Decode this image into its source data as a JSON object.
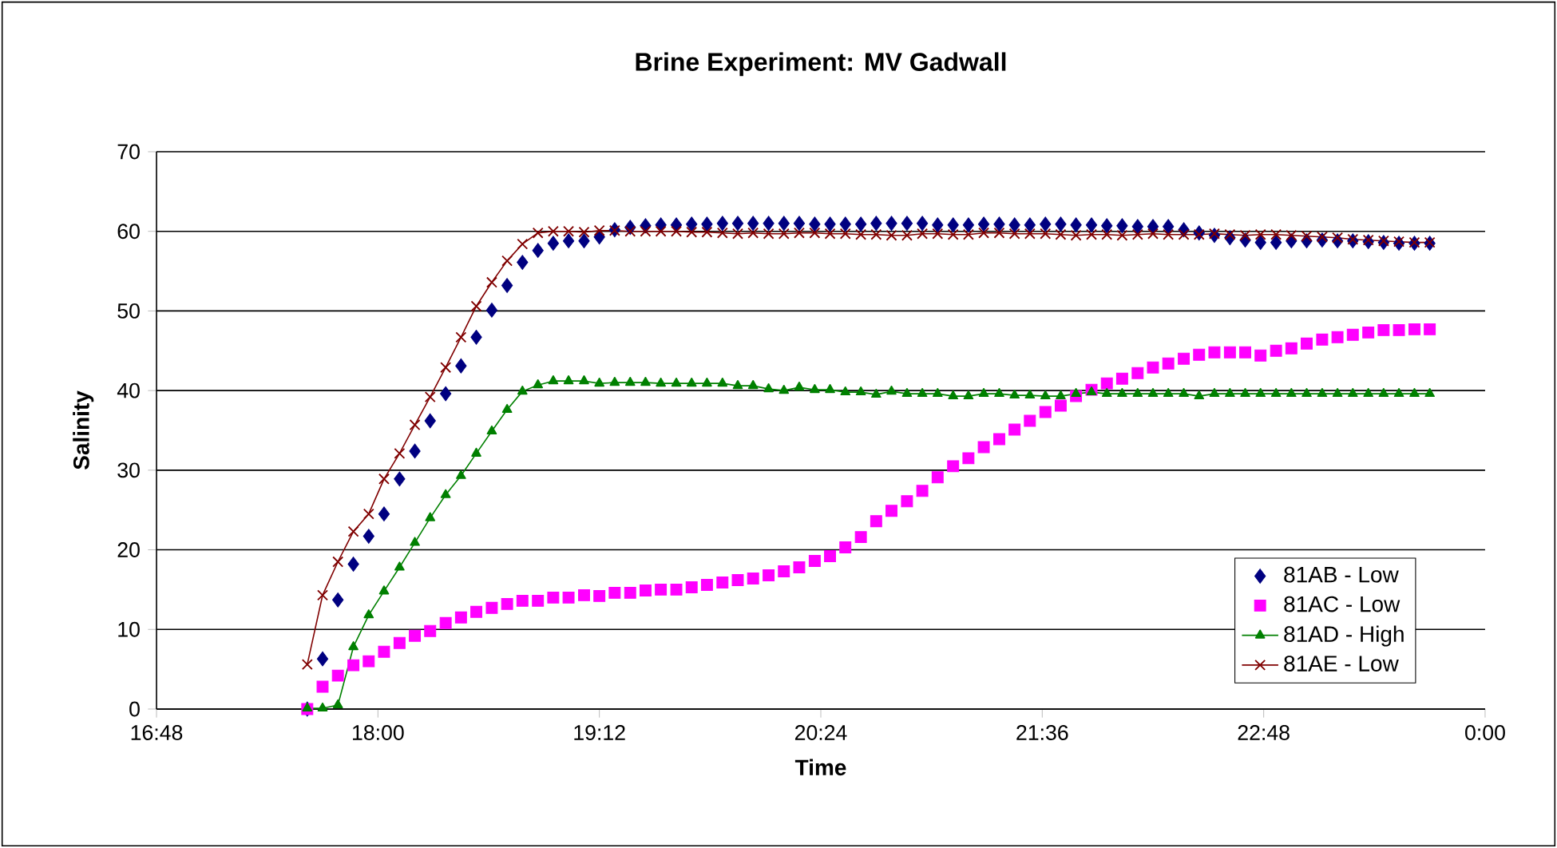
{
  "chart_data": {
    "type": "line",
    "title": "Brine Experiment: MV Gadwall",
    "xlabel": "Time",
    "ylabel": "Salinity",
    "x": [
      17.617,
      17.7,
      17.783,
      17.867,
      17.95,
      18.033,
      18.117,
      18.2,
      18.283,
      18.367,
      18.45,
      18.533,
      18.617,
      18.7,
      18.783,
      18.867,
      18.95,
      19.033,
      19.117,
      19.2,
      19.283,
      19.367,
      19.45,
      19.533,
      19.617,
      19.7,
      19.783,
      19.867,
      19.95,
      20.033,
      20.117,
      20.2,
      20.283,
      20.367,
      20.45,
      20.533,
      20.617,
      20.7,
      20.783,
      20.867,
      20.95,
      21.033,
      21.117,
      21.2,
      21.283,
      21.367,
      21.45,
      21.533,
      21.617,
      21.7,
      21.783,
      21.867,
      21.95,
      22.033,
      22.117,
      22.2,
      22.283,
      22.367,
      22.45,
      22.533,
      22.617,
      22.7,
      22.783,
      22.867,
      22.95,
      23.033,
      23.117,
      23.2,
      23.283,
      23.367,
      23.45,
      23.533,
      23.617,
      23.7
    ],
    "series": [
      {
        "name": "81AB - Low",
        "type": "scatter",
        "marker": "diamond",
        "color": "#000080",
        "values": [
          0,
          6.3,
          13.7,
          18.2,
          21.7,
          24.5,
          28.9,
          32.4,
          36.2,
          39.6,
          43.1,
          46.7,
          50.1,
          53.2,
          56.1,
          57.6,
          58.5,
          58.8,
          58.8,
          59.3,
          60.2,
          60.5,
          60.7,
          60.8,
          60.8,
          60.9,
          60.9,
          61.0,
          61.0,
          61.0,
          61.0,
          61.0,
          61.0,
          60.9,
          60.9,
          60.9,
          60.9,
          61.0,
          61.0,
          61.0,
          61.0,
          60.8,
          60.8,
          60.8,
          60.9,
          60.9,
          60.8,
          60.8,
          60.9,
          60.9,
          60.8,
          60.8,
          60.7,
          60.7,
          60.6,
          60.6,
          60.6,
          60.2,
          59.8,
          59.5,
          59.2,
          58.9,
          58.6,
          58.6,
          58.8,
          58.8,
          58.9,
          58.8,
          58.8,
          58.7,
          58.6,
          58.5,
          58.5,
          58.5
        ]
      },
      {
        "name": "81AC - Low",
        "type": "scatter",
        "marker": "square",
        "color": "#ff00ff",
        "values": [
          0,
          2.8,
          4.2,
          5.5,
          6.0,
          7.2,
          8.3,
          9.2,
          9.8,
          10.8,
          11.5,
          12.2,
          12.7,
          13.2,
          13.6,
          13.6,
          14.0,
          14.0,
          14.3,
          14.2,
          14.6,
          14.6,
          14.9,
          15.0,
          15.0,
          15.3,
          15.6,
          15.9,
          16.2,
          16.4,
          16.8,
          17.3,
          17.8,
          18.6,
          19.2,
          20.3,
          21.6,
          23.6,
          24.9,
          26.1,
          27.4,
          29.1,
          30.5,
          31.5,
          32.9,
          33.9,
          35.1,
          36.2,
          37.3,
          38.1,
          39.3,
          40.1,
          40.9,
          41.5,
          42.2,
          42.9,
          43.4,
          44.0,
          44.5,
          44.8,
          44.8,
          44.8,
          44.4,
          45.0,
          45.3,
          45.9,
          46.4,
          46.7,
          47.0,
          47.3,
          47.6,
          47.6,
          47.7,
          47.7
        ]
      },
      {
        "name": "81AD - High",
        "marker": "triangle",
        "color": "#008000",
        "values": [
          0.1,
          0.1,
          0.5,
          7.8,
          11.8,
          14.8,
          17.8,
          20.9,
          24.0,
          26.9,
          29.3,
          32.1,
          34.9,
          37.6,
          39.9,
          40.7,
          41.2,
          41.2,
          41.2,
          40.9,
          41.0,
          41.0,
          41.0,
          40.9,
          40.9,
          40.9,
          40.9,
          40.9,
          40.6,
          40.6,
          40.2,
          40.0,
          40.4,
          40.1,
          40.1,
          39.8,
          39.8,
          39.5,
          39.9,
          39.6,
          39.6,
          39.6,
          39.3,
          39.3,
          39.6,
          39.6,
          39.4,
          39.4,
          39.3,
          39.3,
          39.6,
          39.8,
          39.6,
          39.6,
          39.6,
          39.6,
          39.6,
          39.6,
          39.3,
          39.6,
          39.6,
          39.6,
          39.6,
          39.6,
          39.6,
          39.6,
          39.6,
          39.6,
          39.6,
          39.6,
          39.6,
          39.6,
          39.6,
          39.6
        ]
      },
      {
        "name": "81AE - Low",
        "marker": "cross",
        "color": "#800000",
        "values": [
          5.6,
          14.3,
          18.5,
          22.3,
          24.5,
          28.9,
          32.1,
          35.7,
          39.2,
          42.9,
          46.7,
          50.6,
          53.6,
          56.3,
          58.4,
          59.8,
          60.0,
          60.0,
          59.9,
          60.1,
          60.1,
          60.0,
          60.0,
          60.0,
          60.0,
          59.9,
          59.9,
          59.8,
          59.7,
          59.8,
          59.7,
          59.7,
          59.8,
          59.8,
          59.7,
          59.7,
          59.6,
          59.6,
          59.5,
          59.5,
          59.7,
          59.7,
          59.6,
          59.6,
          59.8,
          59.8,
          59.7,
          59.7,
          59.7,
          59.6,
          59.5,
          59.6,
          59.6,
          59.5,
          59.6,
          59.7,
          59.6,
          59.6,
          59.6,
          59.7,
          59.6,
          59.5,
          59.6,
          59.6,
          59.5,
          59.4,
          59.3,
          59.2,
          59.0,
          58.9,
          58.8,
          58.7,
          58.6,
          58.6
        ]
      }
    ],
    "xlim": [
      16.8,
      24
    ],
    "xticks": [
      {
        "value": 16.8,
        "label": "16:48"
      },
      {
        "value": 18,
        "label": "18:00"
      },
      {
        "value": 19.2,
        "label": "19:12"
      },
      {
        "value": 20.4,
        "label": "20:24"
      },
      {
        "value": 21.6,
        "label": "21:36"
      },
      {
        "value": 22.8,
        "label": "22:48"
      },
      {
        "value": 24,
        "label": "0:00"
      }
    ],
    "ylim": [
      0,
      70
    ],
    "yticks": [
      0,
      10,
      20,
      30,
      40,
      50,
      60,
      70
    ],
    "grid": "y",
    "legend": "bottom right"
  }
}
